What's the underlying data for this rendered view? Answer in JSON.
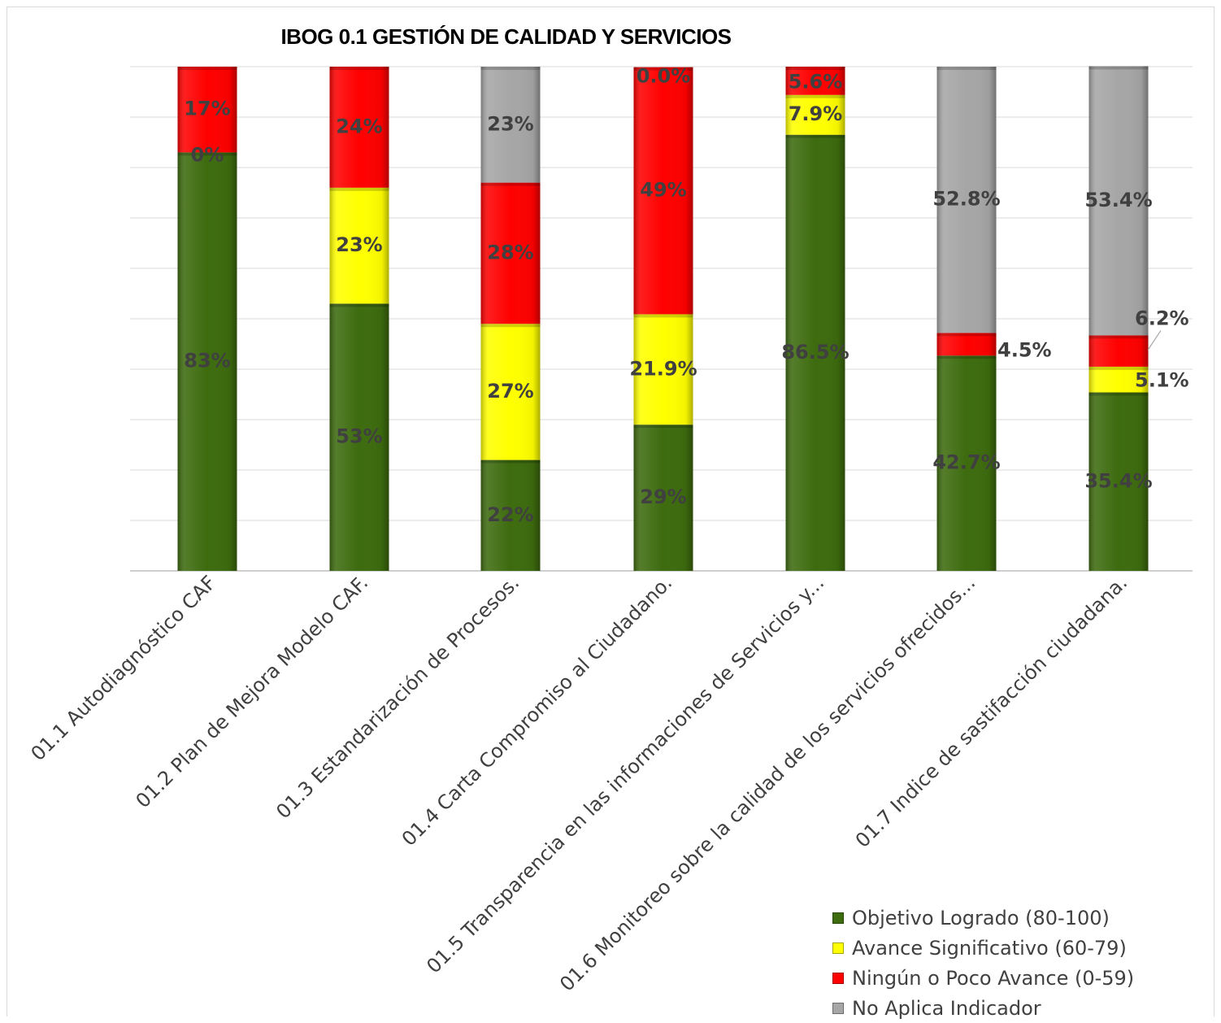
{
  "chart_data": {
    "type": "bar",
    "stacked": true,
    "title": "IBOG 0.1 GESTIÓN DE CALIDAD  Y SERVICIOS",
    "xlabel": "",
    "ylabel": "",
    "ylim": [
      0,
      100
    ],
    "grid": true,
    "legend_position": "bottom-right",
    "categories": [
      "01.1  Autodiagnóstico CAF",
      "01.2 Plan de Mejora Modelo CAF.",
      "01.3 Estandarización de Procesos.",
      "01.4 Carta Compromiso al Ciudadano.",
      "01.5 Transparencia en las informaciones de Servicios y...",
      "01.6 Monitoreo sobre la calidad de los servicios ofrecidos...",
      "01.7 Indice de sastifacción ciudadana."
    ],
    "series": [
      {
        "name": "Objetivo Logrado (80-100)",
        "color": "#3d6b0e",
        "values": [
          83,
          53,
          22,
          29,
          86.5,
          42.7,
          35.4
        ],
        "labels": [
          "83%",
          "53%",
          "22%",
          "29%",
          "86.5%",
          "42.7%",
          "35.4%"
        ]
      },
      {
        "name": "Avance Significativo (60-79)",
        "color": "#ffff00",
        "values": [
          0,
          23,
          27,
          21.9,
          7.9,
          0,
          5.1
        ],
        "labels": [
          "0%",
          "23%",
          "27%",
          "21.9%",
          "7.9%",
          "",
          "5.1%"
        ]
      },
      {
        "name": "Ningún o Poco Avance (0-59)",
        "color": "#ff0000",
        "values": [
          17,
          24,
          28,
          49,
          5.6,
          4.5,
          6.2
        ],
        "labels": [
          "17%",
          "24%",
          "28%",
          "49%",
          "5.6%",
          "4.5%",
          "6.2%"
        ]
      },
      {
        "name": "No Aplica Indicador",
        "color": "#a6a6a6",
        "values": [
          0,
          0,
          23,
          0,
          0,
          52.8,
          53.4
        ],
        "labels": [
          "",
          "",
          "23%",
          "0.0%",
          "",
          "52.8%",
          "53.4%"
        ]
      }
    ]
  }
}
